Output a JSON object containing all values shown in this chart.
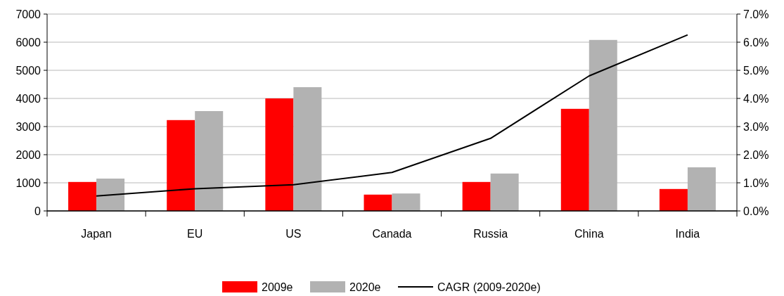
{
  "chart_data": {
    "type": "bar",
    "categories": [
      "Japan",
      "EU",
      "US",
      "Canada",
      "Russia",
      "China",
      "India"
    ],
    "series": [
      {
        "name": "2009e",
        "color": "#ff0000",
        "values": [
          1030,
          3230,
          4000,
          580,
          1030,
          3630,
          780
        ]
      },
      {
        "name": "2020e",
        "color": "#b2b2b2",
        "values": [
          1150,
          3550,
          4400,
          620,
          1330,
          6080,
          1550
        ]
      },
      {
        "name": "CAGR (2009-2020e)",
        "type": "line",
        "axis": "y2",
        "color": "#000000",
        "values": [
          0.53,
          0.79,
          0.93,
          1.37,
          2.58,
          4.8,
          6.26
        ]
      }
    ],
    "ylim": [
      0,
      7000
    ],
    "yticks": [
      0,
      1000,
      2000,
      3000,
      4000,
      5000,
      6000,
      7000
    ],
    "y2lim": [
      0,
      7
    ],
    "y2ticks": [
      {
        "value": 0,
        "label": "0.0%"
      },
      {
        "value": 1,
        "label": "1.0%"
      },
      {
        "value": 2,
        "label": "2.0%"
      },
      {
        "value": 3,
        "label": "3.0%"
      },
      {
        "value": 4,
        "label": "4.0%"
      },
      {
        "value": 5,
        "label": "5.0%"
      },
      {
        "value": 6,
        "label": "6.0%"
      },
      {
        "value": 7,
        "label": "7.0%"
      }
    ],
    "grid": "y",
    "legend": "bottom",
    "marker": "none",
    "line_style": "solid"
  }
}
